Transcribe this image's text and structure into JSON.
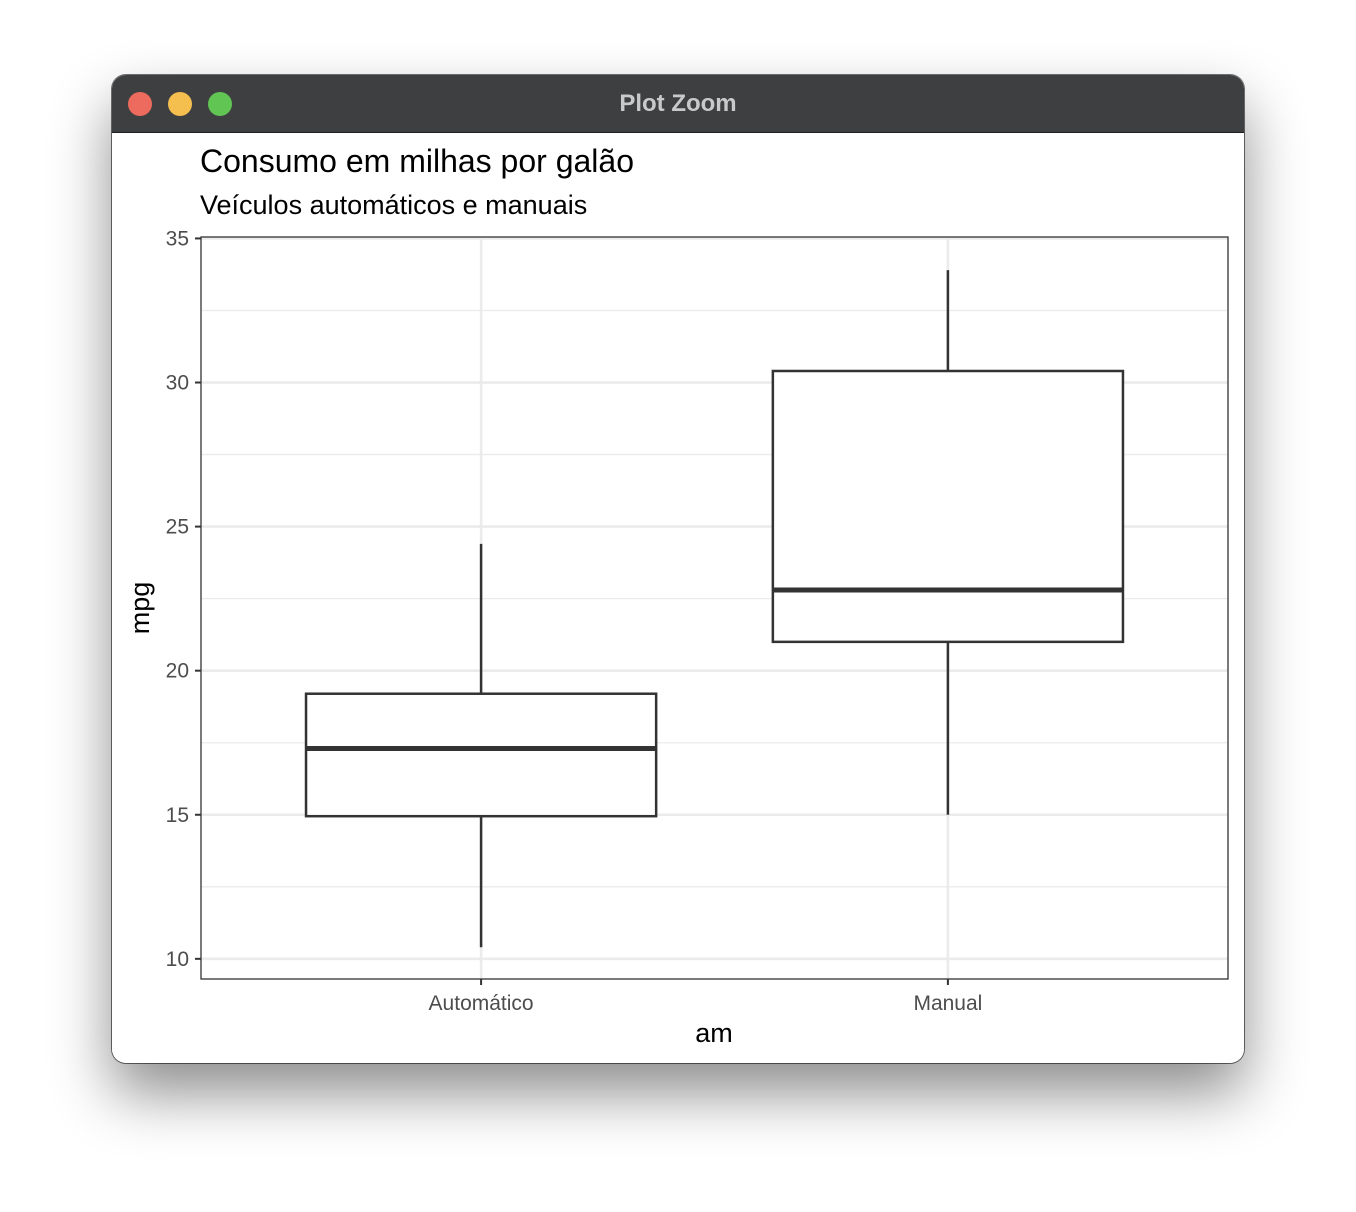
{
  "window": {
    "title": "Plot Zoom",
    "buttons": {
      "close_color": "#ed6a5e",
      "minimize_color": "#f5bf4f",
      "maximize_color": "#61c554"
    }
  },
  "chart_data": {
    "type": "boxplot",
    "title": "Consumo em milhas por galão",
    "subtitle": "Veículos automáticos e manuais",
    "xlabel": "am",
    "ylabel": "mpg",
    "categories": [
      "Automático",
      "Manual"
    ],
    "boxes": [
      {
        "category": "Automático",
        "whisker_low": 10.4,
        "q1": 14.95,
        "median": 17.3,
        "q3": 19.2,
        "whisker_high": 24.4
      },
      {
        "category": "Manual",
        "whisker_low": 15.0,
        "q1": 21.0,
        "median": 22.8,
        "q3": 30.4,
        "whisker_high": 33.9
      }
    ],
    "ylim": [
      9.3,
      35.05
    ],
    "yticks": [
      10,
      15,
      20,
      25,
      30,
      35
    ],
    "ytick_labels": [
      "10",
      "15",
      "20",
      "25",
      "30",
      "35"
    ],
    "grid": true,
    "theme": "bw",
    "colors": {
      "box_outline": "#333333",
      "grid": "#ebebeb",
      "panel_border": "#333333",
      "tick_text": "#4d4d4d"
    }
  }
}
